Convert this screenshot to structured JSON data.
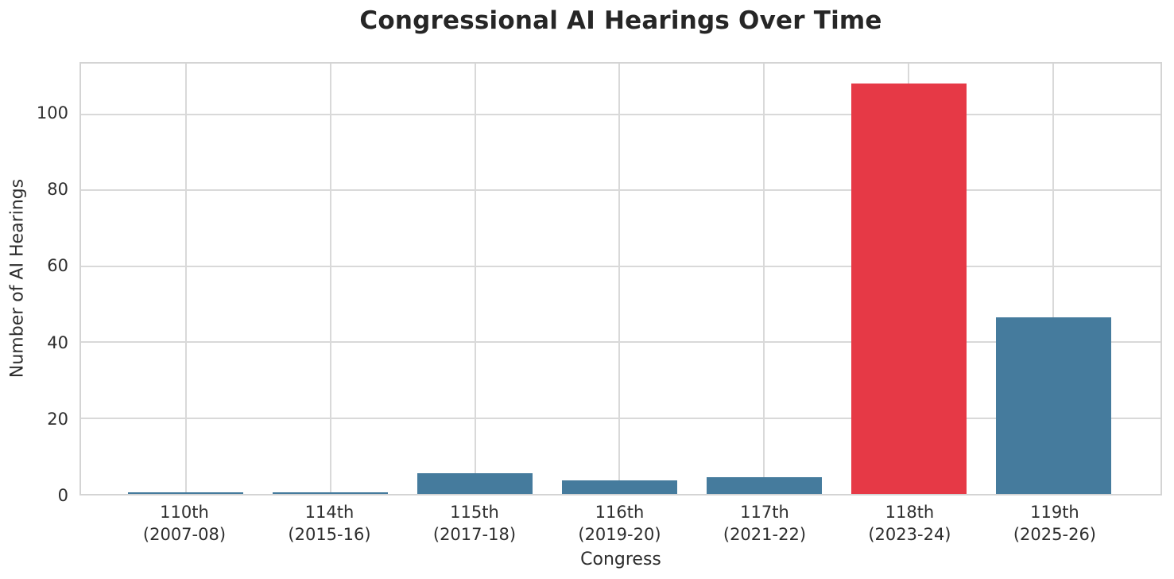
{
  "chart_data": {
    "type": "bar",
    "title": "Congressional AI Hearings Over Time",
    "xlabel": "Congress",
    "ylabel": "Number of AI Hearings",
    "categories": [
      {
        "congress": "110th",
        "years": "(2007-08)"
      },
      {
        "congress": "114th",
        "years": "(2015-16)"
      },
      {
        "congress": "115th",
        "years": "(2017-18)"
      },
      {
        "congress": "116th",
        "years": "(2019-20)"
      },
      {
        "congress": "117th",
        "years": "(2021-22)"
      },
      {
        "congress": "118th",
        "years": "(2023-24)"
      },
      {
        "congress": "119th",
        "years": "(2025-26)"
      }
    ],
    "values": [
      0.5,
      0.5,
      5.5,
      3.5,
      4.5,
      108,
      46.5
    ],
    "bar_colors": [
      "#457b9d",
      "#457b9d",
      "#457b9d",
      "#457b9d",
      "#457b9d",
      "#e63946",
      "#457b9d"
    ],
    "default_bar_color": "#457b9d",
    "highlight_color": "#e63946",
    "highlighted_category": "118th",
    "yticks": [
      0,
      20,
      40,
      60,
      80,
      100
    ],
    "ylim": [
      0,
      113.3
    ],
    "grid": true,
    "grid_color": "#d9d9d9",
    "legend": null,
    "background_color": "#ffffff",
    "title_color": "#262626",
    "tick_label_color": "#2e2e2e"
  }
}
